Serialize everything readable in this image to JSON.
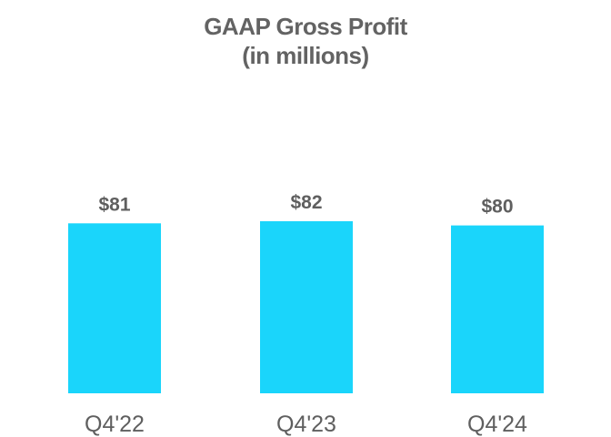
{
  "chart_data": {
    "type": "bar",
    "title": "GAAP Gross Profit",
    "subtitle": "(in millions)",
    "categories": [
      "Q4'22",
      "Q4'23",
      "Q4'24"
    ],
    "values": [
      81,
      82,
      80
    ],
    "data_labels": [
      "$81",
      "$82",
      "$80"
    ],
    "ylim": [
      0,
      82
    ],
    "grid": false,
    "bar_color": "#1ad5fb"
  }
}
